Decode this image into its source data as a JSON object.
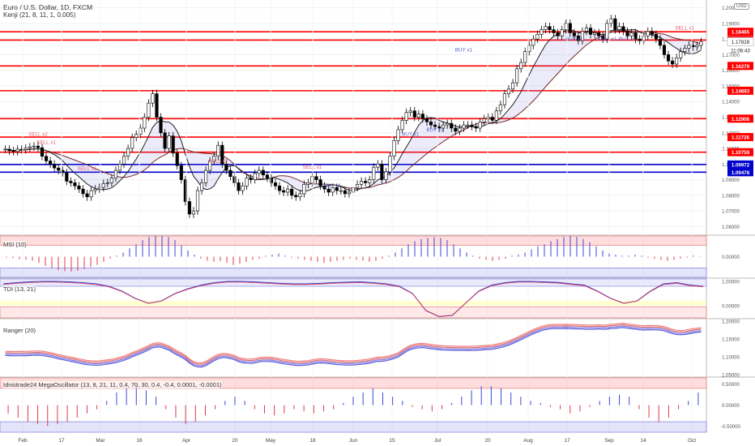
{
  "header": {
    "title": "Euro / U.S. Dollar, 1D, FXCM",
    "indicator": "Kenji (21, 8, 11, 1, 0.005)",
    "currency": "USD"
  },
  "panes": {
    "msi": "MSI (10)",
    "tdi": "TDI (13, 21)",
    "ranger": "Ranger (20)",
    "mega": "Idnistrade24 MegaOscillator (13, 8, 21, 11, 0.4, 70, 30, 0.4, -0.4, 0.0001, -0.0001)"
  },
  "colors": {
    "up": "#26a69a",
    "down": "#000000",
    "level_red": "#ff0000",
    "level_blue": "#0000cc",
    "bull_hist": "#3a46d8",
    "bear_hist": "#e0394a",
    "price_badge": "#ffffff"
  },
  "chart_data": [
    {
      "type": "candlestick",
      "pane": "price",
      "y_ticks": [
        "1.20000",
        "1.19000",
        "1.18000",
        "1.17000",
        "1.16000",
        "1.15000",
        "1.14000",
        "1.13000",
        "1.12000",
        "1.11000",
        "1.10000",
        "1.09000",
        "1.08000",
        "1.07000",
        "1.06000"
      ],
      "x_ticks": [
        "Feb",
        "17",
        "Mar",
        "16",
        "Apr",
        "20",
        "May",
        "18",
        "Jun",
        "15",
        "Jul",
        "20",
        "Aug",
        "17",
        "Sep",
        "14",
        "Oct"
      ],
      "ylim": [
        1.055,
        1.205
      ],
      "last_price": "1.17828",
      "countdown": "11:06:43",
      "level_lines": [
        {
          "value": "1.18465",
          "color": "red"
        },
        {
          "value": "1.17934",
          "color": "red"
        },
        {
          "value": "1.16279",
          "color": "red"
        },
        {
          "value": "1.14693",
          "color": "red"
        },
        {
          "value": "1.12906",
          "color": "red"
        },
        {
          "value": "1.11726",
          "color": "red"
        },
        {
          "value": "1.10759",
          "color": "red"
        },
        {
          "value": "1.09972",
          "color": "blue"
        },
        {
          "value": "1.09478",
          "color": "blue"
        }
      ],
      "signals": [
        {
          "text": "SELL x2",
          "color": "red",
          "price": 1.118
        },
        {
          "text": "SELL x1",
          "color": "red",
          "price": 1.113
        },
        {
          "text": "SELL x1",
          "color": "red",
          "price": 1.096
        },
        {
          "text": "SELL x2",
          "color": "red",
          "price": 1.101
        },
        {
          "text": "SELL x1",
          "color": "red",
          "price": 1.097
        },
        {
          "text": "BUY x1",
          "color": "blue",
          "price": 1.085
        },
        {
          "text": "BUY x1",
          "color": "blue",
          "price": 1.118
        },
        {
          "text": "BUY x1",
          "color": "blue",
          "price": 1.121
        },
        {
          "text": "BUY x1",
          "color": "blue",
          "price": 1.172
        },
        {
          "text": "BUY x1",
          "color": "blue",
          "price": 1.179
        },
        {
          "text": "SELL x1",
          "color": "blue",
          "price": 1.179
        },
        {
          "text": "BUY x1",
          "color": "blue",
          "price": 1.179
        },
        {
          "text": "SELL x1",
          "color": "red",
          "price": 1.186
        }
      ],
      "close": [
        1.1095,
        1.1085,
        1.108,
        1.1095,
        1.1092,
        1.1102,
        1.111,
        1.1115,
        1.1105,
        1.105,
        1.102,
        1.1,
        1.0975,
        1.096,
        1.0945,
        1.089,
        1.088,
        1.086,
        1.084,
        1.081,
        1.079,
        1.083,
        1.084,
        1.085,
        1.0875,
        1.088,
        1.091,
        1.096,
        1.1,
        1.105,
        1.11,
        1.117,
        1.119,
        1.123,
        1.13,
        1.139,
        1.145,
        1.13,
        1.12,
        1.11,
        1.118,
        1.107,
        1.099,
        1.09,
        1.076,
        1.068,
        1.07,
        1.083,
        1.088,
        1.096,
        1.102,
        1.105,
        1.112,
        1.1,
        1.096,
        1.092,
        1.088,
        1.083,
        1.086,
        1.091,
        1.09,
        1.094,
        1.096,
        1.093,
        1.091,
        1.088,
        1.086,
        1.083,
        1.082,
        1.084,
        1.08,
        1.079,
        1.081,
        1.087,
        1.088,
        1.092,
        1.09,
        1.086,
        1.084,
        1.082,
        1.085,
        1.083,
        1.083,
        1.081,
        1.082,
        1.085,
        1.087,
        1.089,
        1.088,
        1.09,
        1.098,
        1.1,
        1.09,
        1.095,
        1.105,
        1.115,
        1.122,
        1.128,
        1.133,
        1.134,
        1.13,
        1.132,
        1.129,
        1.127,
        1.125,
        1.124,
        1.123,
        1.125,
        1.126,
        1.123,
        1.121,
        1.123,
        1.125,
        1.125,
        1.124,
        1.123,
        1.127,
        1.129,
        1.13,
        1.128,
        1.134,
        1.138,
        1.145,
        1.148,
        1.152,
        1.161,
        1.165,
        1.172,
        1.176,
        1.18,
        1.183,
        1.186,
        1.188,
        1.186,
        1.184,
        1.182,
        1.186,
        1.19,
        1.184,
        1.182,
        1.179,
        1.185,
        1.187,
        1.183,
        1.184,
        1.182,
        1.18,
        1.19,
        1.193,
        1.186,
        1.188,
        1.185,
        1.182,
        1.184,
        1.18,
        1.179,
        1.182,
        1.185,
        1.183,
        1.18,
        1.176,
        1.17,
        1.166,
        1.164,
        1.168,
        1.172,
        1.174,
        1.176,
        1.175,
        1.176,
        1.1783
      ]
    },
    {
      "type": "histogram",
      "pane": "msi",
      "y_ticks": [
        "0.00000"
      ],
      "ylim": [
        -1,
        1
      ],
      "values_note": "oscillator bars above/below zero",
      "values": [
        -0.05,
        -0.08,
        -0.12,
        -0.15,
        -0.2,
        -0.3,
        -0.45,
        -0.55,
        -0.65,
        -0.7,
        -0.72,
        -0.68,
        -0.6,
        -0.5,
        -0.4,
        -0.25,
        -0.1,
        0.05,
        0.2,
        0.4,
        0.6,
        0.8,
        0.95,
        1.0,
        1.0,
        0.95,
        0.8,
        0.55,
        0.3,
        0.1,
        -0.1,
        -0.2,
        -0.25,
        -0.2,
        -0.3,
        -0.4,
        -0.35,
        -0.25,
        -0.15,
        -0.1,
        0.05,
        0.1,
        0.15,
        0.05,
        -0.05,
        -0.1,
        -0.15,
        -0.2,
        -0.25,
        -0.3,
        -0.25,
        -0.2,
        -0.15,
        -0.1,
        -0.15,
        -0.2,
        -0.25,
        -0.2,
        -0.1,
        0.05,
        0.2,
        0.4,
        0.6,
        0.75,
        0.85,
        0.9,
        0.95,
        0.9,
        0.8,
        0.6,
        0.4,
        0.2,
        0.05,
        -0.1,
        -0.15,
        -0.2,
        -0.15,
        -0.1,
        0.05,
        0.1,
        0.2,
        0.35,
        0.5,
        0.6,
        0.75,
        0.85,
        0.95,
        1.0,
        0.95,
        0.85,
        0.7,
        0.5,
        0.3,
        0.15,
        0.1,
        0.05,
        0.05,
        0.1,
        0.05,
        -0.05,
        -0.1,
        -0.15,
        -0.2,
        -0.15,
        -0.1,
        -0.05,
        0.05,
        0.02
      ]
    },
    {
      "type": "line",
      "pane": "tdi",
      "y_ticks": [
        "1.00000",
        "0.00000"
      ],
      "ylim": [
        -0.5,
        1.1
      ],
      "values": [
        0.9,
        0.95,
        0.98,
        1.0,
        1.0,
        0.98,
        0.95,
        0.9,
        0.8,
        0.6,
        0.3,
        0.1,
        0.2,
        0.5,
        0.7,
        0.85,
        0.95,
        1.0,
        1.0,
        0.98,
        0.95,
        0.92,
        0.9,
        0.9,
        0.92,
        0.95,
        0.97,
        0.98,
        0.95,
        0.9,
        0.8,
        0.5,
        -0.2,
        -0.45,
        -0.4,
        0.1,
        0.6,
        0.85,
        0.95,
        1.0,
        1.0,
        0.98,
        0.96,
        0.9,
        0.85,
        0.6,
        0.3,
        0.1,
        0.2,
        0.6,
        0.9,
        0.95,
        0.85,
        0.8
      ]
    },
    {
      "type": "line",
      "pane": "ranger",
      "y_ticks": [
        "1.20000",
        "1.15000",
        "1.10000",
        "1.05000"
      ],
      "ylim": [
        1.045,
        1.205
      ],
      "note": "bands follow price"
    },
    {
      "type": "histogram",
      "pane": "mega",
      "y_ticks": [
        "0.50000",
        "0.00000",
        "-0.50000"
      ],
      "ylim": [
        -0.65,
        0.65
      ],
      "values": [
        -0.2,
        -0.3,
        -0.4,
        -0.45,
        -0.5,
        -0.45,
        -0.4,
        -0.3,
        -0.2,
        -0.1,
        0.1,
        0.3,
        0.4,
        0.5,
        0.35,
        0.2,
        -0.1,
        -0.3,
        -0.45,
        -0.4,
        -0.25,
        -0.1,
        0.1,
        0.2,
        0.1,
        -0.1,
        -0.2,
        -0.25,
        -0.2,
        -0.1,
        -0.15,
        -0.2,
        -0.15,
        -0.1,
        0.05,
        0.2,
        0.3,
        0.4,
        0.3,
        0.2,
        0.1,
        -0.05,
        -0.1,
        -0.15,
        -0.1,
        0.05,
        0.2,
        0.35,
        0.45,
        0.45,
        0.4,
        0.3,
        0.2,
        0.1,
        0.05,
        -0.05,
        -0.1,
        -0.2,
        -0.15,
        -0.05,
        0.1,
        0.2,
        0.25,
        0.2,
        -0.1,
        -0.3,
        -0.4,
        -0.3,
        -0.1,
        0.1,
        0.3
      ]
    }
  ]
}
